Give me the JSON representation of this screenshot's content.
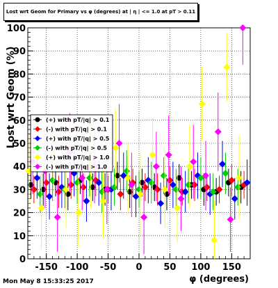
{
  "title": "Lost wrt Geom for Primary vs φ (degrees) at | η | <= 1.0 at pT > 0.11",
  "footer_timestamp": "Mon May  8 15:33:25 2017",
  "chart_data": {
    "type": "scatter",
    "xlabel": "φ (degrees)",
    "ylabel": "Lost wrt Geom (%)",
    "xlim": [
      -180,
      180
    ],
    "ylim": [
      0,
      100
    ],
    "xticks": [
      -150,
      -100,
      -50,
      0,
      50,
      100,
      150
    ],
    "yticks": [
      0,
      10,
      20,
      30,
      40,
      50,
      60,
      70,
      80,
      90,
      100
    ],
    "grid": true,
    "legend_position": "left-middle",
    "series": [
      {
        "name": "(+) with pT/|q| > 0.1",
        "color": "#000000",
        "marker": "circle",
        "x": [
          -175,
          -155,
          -135,
          -115,
          -95,
          -75,
          -55,
          -35,
          -15,
          5,
          25,
          45,
          65,
          85,
          105,
          125,
          145,
          165
        ],
        "y": [
          32,
          30,
          33,
          28,
          34,
          31,
          30,
          36,
          29,
          33,
          31,
          28,
          35,
          32,
          30,
          29,
          33,
          31
        ],
        "err": [
          6,
          7,
          6,
          7,
          6,
          6,
          7,
          6,
          7,
          6,
          6,
          7,
          6,
          6,
          7,
          6,
          6,
          7
        ]
      },
      {
        "name": "(-) with pT/|q| > 0.1",
        "color": "#ff0000",
        "marker": "diamond",
        "x": [
          -170,
          -150,
          -130,
          -110,
          -90,
          -70,
          -50,
          -30,
          -10,
          10,
          30,
          50,
          70,
          90,
          110,
          130,
          150,
          170
        ],
        "y": [
          30,
          33,
          29,
          32,
          31,
          34,
          30,
          28,
          33,
          31,
          30,
          34,
          29,
          32,
          31,
          30,
          34,
          32
        ],
        "err": [
          6,
          6,
          7,
          6,
          6,
          7,
          6,
          7,
          6,
          6,
          7,
          6,
          6,
          7,
          6,
          6,
          7,
          6
        ]
      },
      {
        "name": "(+) with pT/|q| > 0.5",
        "color": "#0000ff",
        "marker": "diamond",
        "x": [
          -165,
          -145,
          -125,
          -105,
          -85,
          -65,
          -45,
          -25,
          -5,
          15,
          35,
          55,
          75,
          95,
          115,
          135,
          155,
          175
        ],
        "y": [
          35,
          27,
          31,
          37,
          25,
          33,
          30,
          36,
          27,
          34,
          24,
          32,
          29,
          36,
          28,
          41,
          26,
          33
        ],
        "err": [
          9,
          10,
          9,
          10,
          9,
          10,
          9,
          10,
          9,
          10,
          9,
          10,
          9,
          10,
          9,
          10,
          9,
          10
        ]
      },
      {
        "name": "(-) with pT/|q| > 0.5",
        "color": "#00cc00",
        "marker": "diamond",
        "x": [
          -160,
          -140,
          -120,
          -100,
          -80,
          -60,
          -40,
          -20,
          0,
          20,
          40,
          60,
          80,
          100,
          120,
          140,
          160
        ],
        "y": [
          28,
          34,
          30,
          33,
          35,
          29,
          31,
          38,
          30,
          33,
          36,
          30,
          32,
          35,
          29,
          37,
          31
        ],
        "err": [
          8,
          9,
          8,
          9,
          8,
          9,
          8,
          9,
          8,
          9,
          8,
          9,
          8,
          9,
          8,
          9,
          8
        ]
      },
      {
        "name": "(+) with pT/|q| > 1.0",
        "color": "#ffff00",
        "marker": "diamond",
        "x": [
          -178,
          -158,
          -138,
          -118,
          -98,
          -78,
          -58,
          -38,
          -18,
          2,
          22,
          42,
          62,
          82,
          102,
          122,
          142,
          162
        ],
        "y": [
          38,
          22,
          45,
          30,
          20,
          40,
          25,
          48,
          35,
          28,
          45,
          30,
          22,
          40,
          67,
          8,
          83,
          35
        ],
        "err": [
          15,
          18,
          16,
          17,
          15,
          18,
          16,
          17,
          15,
          18,
          16,
          17,
          15,
          18,
          16,
          17,
          15,
          18
        ]
      },
      {
        "name": "(-) with pT/|q| > 1.0",
        "color": "#ff00ff",
        "marker": "diamond",
        "x": [
          -172,
          -152,
          -132,
          -112,
          -92,
          -72,
          -52,
          -32,
          -12,
          8,
          28,
          48,
          68,
          88,
          108,
          128,
          148,
          168
        ],
        "y": [
          42,
          38,
          18,
          46,
          35,
          40,
          30,
          50,
          32,
          18,
          40,
          45,
          26,
          42,
          36,
          55,
          17,
          100
        ],
        "err": [
          14,
          16,
          15,
          17,
          14,
          16,
          15,
          17,
          14,
          16,
          15,
          17,
          14,
          16,
          15,
          17,
          14,
          16
        ]
      }
    ]
  }
}
